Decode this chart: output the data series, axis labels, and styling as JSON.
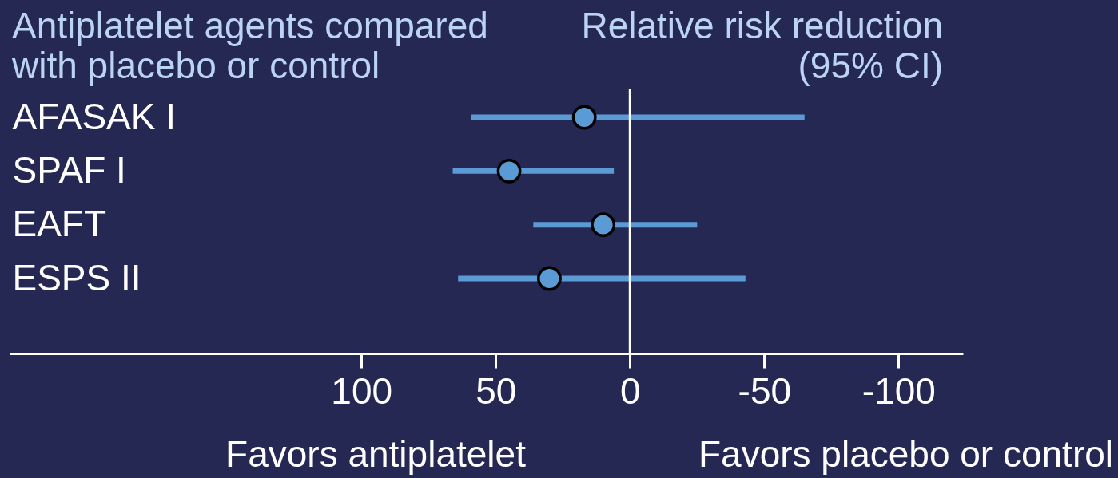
{
  "chart_data": {
    "type": "scatter",
    "orientation": "horizontal",
    "title": "Antiplatelet agents compared with placebo or control",
    "xlabel": "Relative risk reduction (95% CI)",
    "categories": [
      "AFASAK I",
      "SPAF I",
      "EAFT",
      "ESPS II"
    ],
    "series": [
      {
        "color": "#5b9bd5",
        "values": [
          17,
          45,
          10,
          30
        ],
        "errors": [
          [
            -65,
            59
          ],
          [
            6,
            66
          ],
          [
            -25,
            36
          ],
          [
            -43,
            64
          ]
        ]
      }
    ],
    "xlim": [
      231,
      -124
    ],
    "xticks": [
      100,
      50,
      0,
      -50,
      -100
    ],
    "ref_lines": [
      {
        "axis": "x",
        "value": 0
      }
    ],
    "annotations": [
      "Favors antiplatelet",
      "Favors placebo or control"
    ],
    "marker": "circle",
    "grid": false
  }
}
